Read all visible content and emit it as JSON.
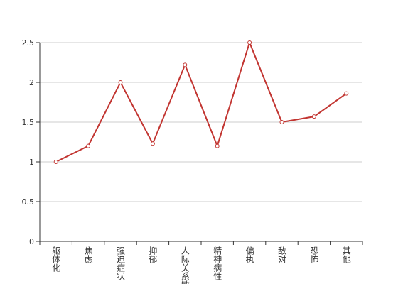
{
  "chart_data": {
    "type": "line",
    "categories": [
      "躯体化",
      "焦虑",
      "强迫症状",
      "抑郁",
      "人际关系敏感",
      "精神病性",
      "偏执",
      "敌对",
      "恐怖",
      "其他"
    ],
    "series": [
      {
        "color": "#c23531",
        "values": [
          1.0,
          1.2,
          2.0,
          1.23,
          2.22,
          1.2,
          2.5,
          1.5,
          1.57,
          1.86
        ]
      }
    ],
    "ylim": [
      0,
      2.5
    ],
    "yticks": [
      0,
      0.5,
      1,
      1.5,
      2,
      2.5
    ],
    "grid": true
  }
}
